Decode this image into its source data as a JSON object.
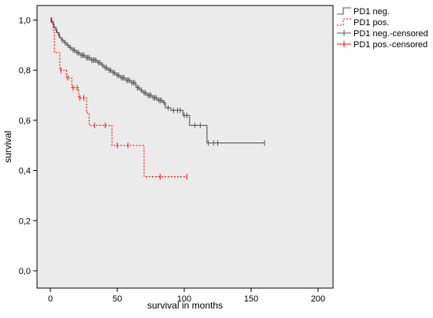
{
  "chart_data": {
    "type": "line",
    "subtype": "kaplan-meier",
    "title": "",
    "xlabel": "survival in months",
    "ylabel": "survival",
    "xlim": [
      -10,
      200
    ],
    "ylim": [
      -0.05,
      1.0
    ],
    "x_ticks": [
      0,
      50,
      100,
      150,
      200
    ],
    "y_ticks": [
      0.0,
      0.2,
      0.4,
      0.6,
      0.8,
      1.0
    ],
    "y_tick_labels": [
      "0,0",
      "0,2",
      "0,4",
      "0,6",
      "0,8",
      "1,0"
    ],
    "plot_background": "#ebebeb",
    "grid": false,
    "legend_position": "top-right",
    "legend": [
      {
        "label": "PD1 neg.",
        "color": "#555555",
        "style": "solid",
        "marker": "step"
      },
      {
        "label": "PD1 pos.",
        "color": "#ff0000",
        "style": "dotted",
        "marker": "step"
      },
      {
        "label": "PD1 neg.-censored",
        "color": "#555555",
        "style": "solid",
        "marker": "plus"
      },
      {
        "label": "PD1 pos.-censored",
        "color": "#ff0000",
        "style": "solid",
        "marker": "plus"
      }
    ],
    "series": [
      {
        "name": "PD1 neg.",
        "color": "#555555",
        "dash": "none",
        "steps": [
          [
            0,
            1.0
          ],
          [
            1,
            0.99
          ],
          [
            2,
            0.98
          ],
          [
            3,
            0.97
          ],
          [
            4,
            0.96
          ],
          [
            5,
            0.95
          ],
          [
            6,
            0.94
          ],
          [
            7,
            0.93
          ],
          [
            8,
            0.92
          ],
          [
            10,
            0.91
          ],
          [
            12,
            0.9
          ],
          [
            14,
            0.89
          ],
          [
            16,
            0.88
          ],
          [
            19,
            0.87
          ],
          [
            22,
            0.86
          ],
          [
            26,
            0.85
          ],
          [
            30,
            0.84
          ],
          [
            35,
            0.83
          ],
          [
            38,
            0.82
          ],
          [
            40,
            0.81
          ],
          [
            43,
            0.8
          ],
          [
            46,
            0.79
          ],
          [
            49,
            0.78
          ],
          [
            52,
            0.77
          ],
          [
            56,
            0.76
          ],
          [
            60,
            0.75
          ],
          [
            64,
            0.73
          ],
          [
            67,
            0.72
          ],
          [
            69,
            0.71
          ],
          [
            72,
            0.7
          ],
          [
            76,
            0.69
          ],
          [
            80,
            0.68
          ],
          [
            84,
            0.67
          ],
          [
            86,
            0.65
          ],
          [
            90,
            0.64
          ],
          [
            99,
            0.62
          ],
          [
            104,
            0.58
          ],
          [
            117,
            0.51
          ],
          [
            160,
            0.51
          ]
        ],
        "censored": [
          [
            0.5,
            1.0
          ],
          [
            2.5,
            0.98
          ],
          [
            4.5,
            0.96
          ],
          [
            6.5,
            0.94
          ],
          [
            9,
            0.92
          ],
          [
            11,
            0.91
          ],
          [
            13,
            0.9
          ],
          [
            15,
            0.89
          ],
          [
            17,
            0.88
          ],
          [
            18,
            0.88
          ],
          [
            20,
            0.87
          ],
          [
            21,
            0.87
          ],
          [
            23,
            0.86
          ],
          [
            24,
            0.86
          ],
          [
            25,
            0.86
          ],
          [
            27,
            0.85
          ],
          [
            28,
            0.85
          ],
          [
            29,
            0.85
          ],
          [
            31,
            0.84
          ],
          [
            32,
            0.84
          ],
          [
            33,
            0.84
          ],
          [
            34,
            0.84
          ],
          [
            36,
            0.83
          ],
          [
            37,
            0.83
          ],
          [
            39,
            0.82
          ],
          [
            41,
            0.81
          ],
          [
            42,
            0.81
          ],
          [
            44,
            0.8
          ],
          [
            45,
            0.8
          ],
          [
            47,
            0.79
          ],
          [
            48,
            0.79
          ],
          [
            50,
            0.78
          ],
          [
            51,
            0.78
          ],
          [
            53,
            0.77
          ],
          [
            54,
            0.77
          ],
          [
            55,
            0.77
          ],
          [
            57,
            0.76
          ],
          [
            58,
            0.76
          ],
          [
            59,
            0.76
          ],
          [
            61,
            0.75
          ],
          [
            62,
            0.75
          ],
          [
            63,
            0.75
          ],
          [
            65,
            0.73
          ],
          [
            66,
            0.73
          ],
          [
            68,
            0.72
          ],
          [
            70,
            0.71
          ],
          [
            71,
            0.71
          ],
          [
            73,
            0.7
          ],
          [
            74,
            0.7
          ],
          [
            75,
            0.7
          ],
          [
            77,
            0.69
          ],
          [
            78,
            0.69
          ],
          [
            79,
            0.69
          ],
          [
            81,
            0.68
          ],
          [
            82,
            0.68
          ],
          [
            83,
            0.68
          ],
          [
            85,
            0.67
          ],
          [
            88,
            0.65
          ],
          [
            92,
            0.64
          ],
          [
            95,
            0.64
          ],
          [
            97,
            0.64
          ],
          [
            100,
            0.62
          ],
          [
            102,
            0.62
          ],
          [
            108,
            0.58
          ],
          [
            112,
            0.58
          ],
          [
            118,
            0.51
          ],
          [
            122,
            0.51
          ],
          [
            125,
            0.51
          ],
          [
            160,
            0.51
          ]
        ]
      },
      {
        "name": "PD1 pos.",
        "color": "#ff0000",
        "dash": "2,2",
        "steps": [
          [
            0,
            1.0
          ],
          [
            2,
            0.96
          ],
          [
            3,
            0.87
          ],
          [
            7,
            0.8
          ],
          [
            12,
            0.77
          ],
          [
            16,
            0.73
          ],
          [
            21,
            0.69
          ],
          [
            27,
            0.63
          ],
          [
            29,
            0.58
          ],
          [
            46,
            0.5
          ],
          [
            70,
            0.375
          ],
          [
            102,
            0.375
          ]
        ],
        "censored": [
          [
            1,
            1.0
          ],
          [
            8,
            0.8
          ],
          [
            13,
            0.77
          ],
          [
            17,
            0.73
          ],
          [
            20,
            0.73
          ],
          [
            22,
            0.69
          ],
          [
            25,
            0.69
          ],
          [
            33,
            0.58
          ],
          [
            41,
            0.58
          ],
          [
            50,
            0.5
          ],
          [
            58,
            0.5
          ],
          [
            82,
            0.375
          ],
          [
            102,
            0.375
          ]
        ]
      }
    ]
  }
}
